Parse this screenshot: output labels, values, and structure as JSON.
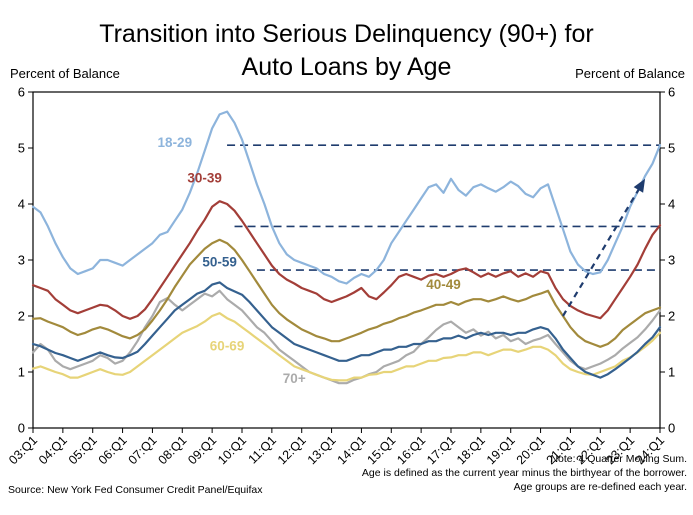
{
  "title_line1": "Transition into Serious Delinquency (90+) for",
  "title_line2": "Auto Loans by Age",
  "left_axis_caption": "Percent of Balance",
  "right_axis_caption": "Percent of Balance",
  "notes": [
    "Note: 4 Quarter Moving Sum.",
    "Age is defined as the current year minus the birthyear of the borrower.",
    "Age groups are re-defined each year."
  ],
  "source": "Source: New York Fed Consumer Credit Panel/Equifax",
  "chart_data": {
    "type": "line",
    "title": "Transition into Serious Delinquency (90+) for Auto Loans by Age",
    "xlabel": "",
    "ylabel": "Percent of Balance",
    "ylim": [
      0,
      6
    ],
    "y_ticks": [
      0,
      1,
      2,
      3,
      4,
      5,
      6
    ],
    "x_tick_labels": [
      "03:Q1",
      "04:Q1",
      "05:Q1",
      "06:Q1",
      "07:Q1",
      "08:Q1",
      "09:Q1",
      "10:Q1",
      "11:Q1",
      "12:Q1",
      "13:Q1",
      "14:Q1",
      "15:Q1",
      "16:Q1",
      "17:Q1",
      "18:Q1",
      "19:Q1",
      "20:Q1",
      "21:Q1",
      "22:Q1",
      "23:Q1",
      "24:Q1"
    ],
    "quarters_per_tick": 4,
    "grid": false,
    "legend": "inline-labels",
    "reference_color": "#1F3C6E",
    "reference_lines": [
      {
        "y": 5.05,
        "start_index": 26
      },
      {
        "y": 3.6,
        "start_index": 27
      },
      {
        "y": 2.82,
        "start_index": 30
      }
    ],
    "trend_arrow": {
      "from": {
        "i": 71,
        "v": 2.0
      },
      "to": {
        "i": 82,
        "v": 4.45
      }
    },
    "series": [
      {
        "name": "18-29",
        "color": "#8DB4DC",
        "label_at": {
          "i": 19,
          "v": 5.02
        },
        "values": [
          3.95,
          3.85,
          3.6,
          3.3,
          3.05,
          2.85,
          2.75,
          2.8,
          2.85,
          3.0,
          3.0,
          2.95,
          2.9,
          3.0,
          3.1,
          3.2,
          3.3,
          3.45,
          3.5,
          3.7,
          3.9,
          4.2,
          4.55,
          4.95,
          5.35,
          5.6,
          5.65,
          5.45,
          5.15,
          4.75,
          4.35,
          4.0,
          3.6,
          3.3,
          3.1,
          3.0,
          2.95,
          2.9,
          2.85,
          2.75,
          2.7,
          2.62,
          2.58,
          2.68,
          2.75,
          2.7,
          2.82,
          3.0,
          3.3,
          3.5,
          3.7,
          3.9,
          4.1,
          4.3,
          4.35,
          4.2,
          4.45,
          4.25,
          4.15,
          4.3,
          4.35,
          4.28,
          4.22,
          4.3,
          4.4,
          4.32,
          4.18,
          4.12,
          4.28,
          4.35,
          3.95,
          3.55,
          3.15,
          2.92,
          2.8,
          2.75,
          2.78,
          3.0,
          3.3,
          3.6,
          3.95,
          4.22,
          4.5,
          4.72,
          5.05
        ]
      },
      {
        "name": "30-39",
        "color": "#A33E38",
        "label_at": {
          "i": 23,
          "v": 4.38
        },
        "values": [
          2.55,
          2.5,
          2.45,
          2.3,
          2.2,
          2.1,
          2.05,
          2.1,
          2.15,
          2.2,
          2.18,
          2.1,
          2.0,
          1.95,
          2.0,
          2.12,
          2.3,
          2.5,
          2.7,
          2.9,
          3.1,
          3.3,
          3.52,
          3.72,
          3.95,
          4.05,
          4.0,
          3.88,
          3.7,
          3.5,
          3.3,
          3.1,
          2.9,
          2.75,
          2.65,
          2.58,
          2.5,
          2.45,
          2.4,
          2.3,
          2.25,
          2.3,
          2.35,
          2.42,
          2.5,
          2.35,
          2.3,
          2.42,
          2.55,
          2.7,
          2.75,
          2.7,
          2.65,
          2.72,
          2.75,
          2.7,
          2.75,
          2.82,
          2.85,
          2.78,
          2.7,
          2.76,
          2.7,
          2.76,
          2.8,
          2.7,
          2.76,
          2.7,
          2.8,
          2.76,
          2.5,
          2.3,
          2.18,
          2.1,
          2.04,
          2.0,
          1.96,
          2.1,
          2.3,
          2.5,
          2.7,
          2.92,
          3.2,
          3.45,
          3.62
        ]
      },
      {
        "name": "40-49",
        "color": "#A28A3C",
        "label_at": {
          "i": 55,
          "v": 2.48
        },
        "values": [
          1.95,
          1.96,
          1.9,
          1.85,
          1.8,
          1.72,
          1.66,
          1.7,
          1.76,
          1.8,
          1.76,
          1.7,
          1.64,
          1.6,
          1.66,
          1.76,
          1.92,
          2.1,
          2.3,
          2.52,
          2.72,
          2.92,
          3.06,
          3.2,
          3.3,
          3.36,
          3.3,
          3.18,
          3.0,
          2.8,
          2.6,
          2.4,
          2.2,
          2.05,
          1.94,
          1.85,
          1.76,
          1.7,
          1.64,
          1.6,
          1.55,
          1.55,
          1.6,
          1.65,
          1.7,
          1.76,
          1.8,
          1.86,
          1.9,
          1.96,
          2.0,
          2.06,
          2.1,
          2.15,
          2.2,
          2.2,
          2.25,
          2.2,
          2.26,
          2.3,
          2.3,
          2.26,
          2.3,
          2.35,
          2.3,
          2.26,
          2.3,
          2.36,
          2.4,
          2.45,
          2.2,
          2.0,
          1.8,
          1.65,
          1.55,
          1.5,
          1.45,
          1.5,
          1.6,
          1.75,
          1.85,
          1.95,
          2.05,
          2.1,
          2.15
        ]
      },
      {
        "name": "50-59",
        "color": "#35618F",
        "label_at": {
          "i": 25,
          "v": 2.88
        },
        "values": [
          1.5,
          1.46,
          1.4,
          1.34,
          1.3,
          1.25,
          1.2,
          1.25,
          1.3,
          1.35,
          1.3,
          1.26,
          1.25,
          1.3,
          1.36,
          1.5,
          1.65,
          1.8,
          1.95,
          2.1,
          2.2,
          2.3,
          2.4,
          2.45,
          2.56,
          2.6,
          2.5,
          2.44,
          2.38,
          2.25,
          2.1,
          1.95,
          1.8,
          1.7,
          1.6,
          1.5,
          1.45,
          1.4,
          1.35,
          1.3,
          1.25,
          1.2,
          1.2,
          1.25,
          1.3,
          1.3,
          1.35,
          1.4,
          1.4,
          1.45,
          1.45,
          1.5,
          1.5,
          1.55,
          1.55,
          1.6,
          1.6,
          1.65,
          1.6,
          1.66,
          1.7,
          1.66,
          1.7,
          1.7,
          1.66,
          1.7,
          1.7,
          1.76,
          1.8,
          1.76,
          1.6,
          1.4,
          1.25,
          1.1,
          1.0,
          0.95,
          0.9,
          0.96,
          1.05,
          1.15,
          1.25,
          1.36,
          1.5,
          1.62,
          1.8
        ]
      },
      {
        "name": "60-69",
        "color": "#E7D478",
        "label_at": {
          "i": 26,
          "v": 1.38
        },
        "values": [
          1.06,
          1.1,
          1.05,
          1.0,
          0.96,
          0.9,
          0.9,
          0.95,
          1.0,
          1.05,
          1.0,
          0.96,
          0.95,
          1.0,
          1.1,
          1.2,
          1.3,
          1.4,
          1.5,
          1.6,
          1.7,
          1.76,
          1.82,
          1.9,
          2.0,
          2.05,
          1.96,
          1.9,
          1.8,
          1.7,
          1.6,
          1.5,
          1.4,
          1.3,
          1.2,
          1.1,
          1.05,
          1.0,
          0.95,
          0.9,
          0.86,
          0.85,
          0.85,
          0.9,
          0.9,
          0.95,
          0.96,
          1.0,
          1.0,
          1.05,
          1.1,
          1.1,
          1.15,
          1.2,
          1.2,
          1.25,
          1.26,
          1.3,
          1.3,
          1.35,
          1.35,
          1.3,
          1.35,
          1.4,
          1.4,
          1.36,
          1.4,
          1.45,
          1.45,
          1.4,
          1.3,
          1.15,
          1.05,
          1.0,
          0.96,
          0.95,
          1.0,
          1.05,
          1.1,
          1.2,
          1.26,
          1.35,
          1.45,
          1.56,
          1.7
        ]
      },
      {
        "name": "70+",
        "color": "#ABABAB",
        "label_at": {
          "i": 35,
          "v": 0.8
        },
        "values": [
          1.35,
          1.5,
          1.4,
          1.2,
          1.1,
          1.05,
          1.1,
          1.15,
          1.2,
          1.3,
          1.25,
          1.15,
          1.2,
          1.35,
          1.55,
          1.8,
          2.0,
          2.25,
          2.32,
          2.2,
          2.1,
          2.2,
          2.3,
          2.4,
          2.35,
          2.45,
          2.3,
          2.2,
          2.1,
          1.95,
          1.8,
          1.7,
          1.55,
          1.4,
          1.3,
          1.2,
          1.1,
          1.0,
          0.95,
          0.9,
          0.85,
          0.8,
          0.8,
          0.86,
          0.9,
          0.96,
          1.0,
          1.1,
          1.15,
          1.2,
          1.3,
          1.36,
          1.5,
          1.62,
          1.75,
          1.85,
          1.9,
          1.8,
          1.7,
          1.76,
          1.65,
          1.72,
          1.6,
          1.66,
          1.55,
          1.6,
          1.5,
          1.56,
          1.6,
          1.66,
          1.5,
          1.35,
          1.2,
          1.1,
          1.05,
          1.1,
          1.15,
          1.22,
          1.3,
          1.42,
          1.52,
          1.62,
          1.76,
          1.92,
          2.1
        ]
      }
    ]
  }
}
